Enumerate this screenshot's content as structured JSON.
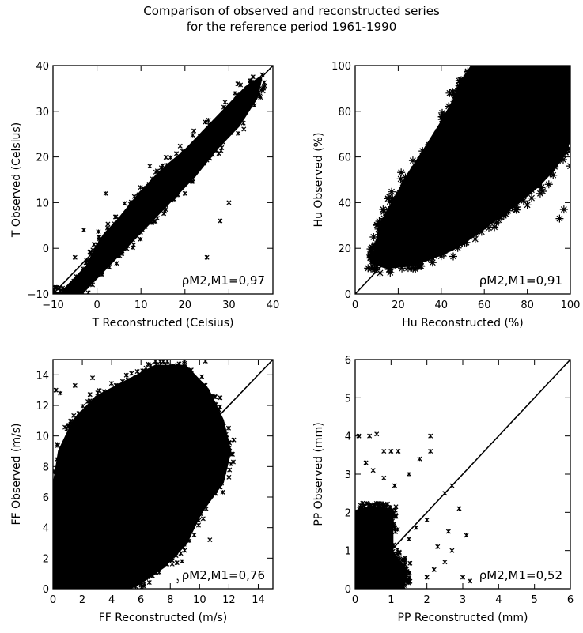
{
  "figure": {
    "title_line1": "Comparison of observed and reconstructed series",
    "title_line2": "for the reference period 1961-1990"
  },
  "chart_data": [
    {
      "type": "scatter",
      "xlabel": "T Reconstructed (Celsius)",
      "ylabel": "T Observed (Celsius)",
      "xlim": [
        -10,
        40
      ],
      "ylim": [
        -10,
        40
      ],
      "xticks": [
        -10,
        0,
        10,
        20,
        30,
        40
      ],
      "yticks": [
        -10,
        0,
        10,
        20,
        30,
        40
      ],
      "annotation": "ρM2,M1=0,97",
      "correlation": 0.97,
      "marker": "x",
      "identity_line": true,
      "cloud": [
        [
          -10,
          -10
        ],
        [
          -8,
          -10
        ],
        [
          -2,
          -4
        ],
        [
          0,
          0
        ],
        [
          2,
          3
        ],
        [
          5,
          6
        ],
        [
          10,
          12
        ],
        [
          15,
          17
        ],
        [
          20,
          21
        ],
        [
          25,
          26
        ],
        [
          30,
          31
        ],
        [
          34,
          35
        ],
        [
          37,
          37
        ],
        [
          36,
          33
        ],
        [
          32,
          27
        ],
        [
          27,
          22
        ],
        [
          22,
          16
        ],
        [
          17,
          11
        ],
        [
          12,
          6
        ],
        [
          8,
          2
        ],
        [
          4,
          -2
        ],
        [
          0,
          -6
        ],
        [
          -4,
          -10
        ]
      ],
      "outliers": [
        [
          -6,
          -10
        ],
        [
          -3,
          4
        ],
        [
          -1,
          -8
        ],
        [
          2,
          12
        ],
        [
          25,
          -2
        ],
        [
          28,
          6
        ],
        [
          30,
          10
        ],
        [
          32,
          36
        ],
        [
          36,
          34
        ],
        [
          20,
          12
        ],
        [
          12,
          18
        ],
        [
          -5,
          -2
        ]
      ]
    },
    {
      "type": "scatter",
      "xlabel": "Hu Reconstructed (%)",
      "ylabel": "Hu Observed (%)",
      "xlim": [
        0,
        100
      ],
      "ylim": [
        0,
        100
      ],
      "xticks": [
        0,
        20,
        40,
        60,
        80,
        100
      ],
      "yticks": [
        0,
        20,
        40,
        60,
        80,
        100
      ],
      "annotation": "ρM2,M1=0,91",
      "correlation": 0.91,
      "marker": "asterisk",
      "identity_line": true,
      "cloud": [
        [
          8,
          14
        ],
        [
          10,
          20
        ],
        [
          12,
          30
        ],
        [
          18,
          40
        ],
        [
          25,
          52
        ],
        [
          32,
          62
        ],
        [
          40,
          74
        ],
        [
          46,
          84
        ],
        [
          50,
          93
        ],
        [
          55,
          100
        ],
        [
          100,
          100
        ],
        [
          100,
          70
        ],
        [
          97,
          62
        ],
        [
          92,
          55
        ],
        [
          85,
          48
        ],
        [
          75,
          40
        ],
        [
          65,
          33
        ],
        [
          55,
          26
        ],
        [
          45,
          20
        ],
        [
          35,
          16
        ],
        [
          25,
          13
        ],
        [
          15,
          12
        ]
      ],
      "outliers": [
        [
          13,
          37
        ],
        [
          15,
          33
        ],
        [
          11,
          26
        ],
        [
          50,
          92
        ],
        [
          97,
          37
        ],
        [
          95,
          33
        ],
        [
          100,
          56
        ],
        [
          100,
          63
        ],
        [
          96,
          60
        ],
        [
          92,
          52
        ],
        [
          90,
          48
        ],
        [
          86,
          44
        ],
        [
          82,
          42
        ],
        [
          80,
          39
        ],
        [
          70,
          35
        ],
        [
          60,
          30
        ],
        [
          50,
          24
        ],
        [
          40,
          18
        ],
        [
          30,
          15
        ],
        [
          20,
          14
        ],
        [
          9,
          11
        ]
      ]
    },
    {
      "type": "scatter",
      "xlabel": "FF Reconstructed (m/s)",
      "ylabel": "FF Observed (m/s)",
      "xlim": [
        0,
        15
      ],
      "ylim": [
        0,
        15
      ],
      "xticks": [
        0,
        2,
        4,
        6,
        8,
        10,
        12,
        14
      ],
      "yticks": [
        0,
        2,
        4,
        6,
        8,
        10,
        12,
        14
      ],
      "annotation": "ρM2,M1=0,76",
      "correlation": 0.76,
      "marker": "x",
      "identity_line": true,
      "cloud": [
        [
          0,
          0
        ],
        [
          0,
          6
        ],
        [
          0.5,
          9
        ],
        [
          1.5,
          11
        ],
        [
          3,
          12.5
        ],
        [
          5,
          13.5
        ],
        [
          7,
          14.5
        ],
        [
          9,
          14.5
        ],
        [
          10.5,
          13
        ],
        [
          11.5,
          11
        ],
        [
          12,
          9
        ],
        [
          11.5,
          7
        ],
        [
          10,
          5
        ],
        [
          9,
          3
        ],
        [
          7.5,
          1.5
        ],
        [
          6,
          0.5
        ],
        [
          5,
          0
        ]
      ],
      "outliers": [
        [
          0.5,
          12.8
        ],
        [
          1.5,
          13.3
        ],
        [
          0.2,
          13
        ],
        [
          2.7,
          13.8
        ],
        [
          4.3,
          13.3
        ],
        [
          6.5,
          14.7
        ],
        [
          8.2,
          14.6
        ],
        [
          10.4,
          14.9
        ],
        [
          11.4,
          12.5
        ],
        [
          12.3,
          8.3
        ],
        [
          12,
          7.3
        ],
        [
          11.8,
          10.1
        ],
        [
          10.7,
          3.2
        ],
        [
          8.8,
          1.8
        ],
        [
          8.6,
          0.5
        ]
      ]
    },
    {
      "type": "scatter",
      "xlabel": "PP Reconstructed (mm)",
      "ylabel": "PP Observed (mm)",
      "xlim": [
        0,
        6
      ],
      "ylim": [
        0,
        6
      ],
      "xticks": [
        0,
        1,
        2,
        3,
        4,
        5,
        6
      ],
      "yticks": [
        0,
        1,
        2,
        3,
        4,
        5,
        6
      ],
      "annotation": "ρM2,M1=0,52",
      "correlation": 0.52,
      "marker": "x",
      "identity_line": true,
      "cloud": [
        [
          0,
          0
        ],
        [
          0,
          2
        ],
        [
          0.5,
          2.1
        ],
        [
          1,
          2.05
        ],
        [
          1,
          0.9
        ],
        [
          1.4,
          0.5
        ],
        [
          1.3,
          0
        ],
        [
          0,
          0
        ]
      ],
      "outliers": [
        [
          0.1,
          4
        ],
        [
          0.4,
          4
        ],
        [
          0.6,
          4.05
        ],
        [
          0.8,
          3.6
        ],
        [
          1,
          3.6
        ],
        [
          1.2,
          3.6
        ],
        [
          0.3,
          3.3
        ],
        [
          0.5,
          3.1
        ],
        [
          0.8,
          2.9
        ],
        [
          1.1,
          2.7
        ],
        [
          1.5,
          3
        ],
        [
          1.8,
          3.4
        ],
        [
          2.1,
          3.6
        ],
        [
          2.1,
          4
        ],
        [
          2.5,
          2.5
        ],
        [
          2.7,
          2.7
        ],
        [
          2.9,
          2.1
        ],
        [
          3.1,
          1.4
        ],
        [
          2.7,
          1
        ],
        [
          2.5,
          0.7
        ],
        [
          2.6,
          1.5
        ],
        [
          2,
          1.8
        ],
        [
          1.7,
          1.6
        ],
        [
          2.2,
          0.5
        ],
        [
          3,
          0.3
        ],
        [
          1.5,
          1.3
        ],
        [
          2,
          0.3
        ],
        [
          2.3,
          1.1
        ],
        [
          3.2,
          0.2
        ]
      ]
    }
  ]
}
